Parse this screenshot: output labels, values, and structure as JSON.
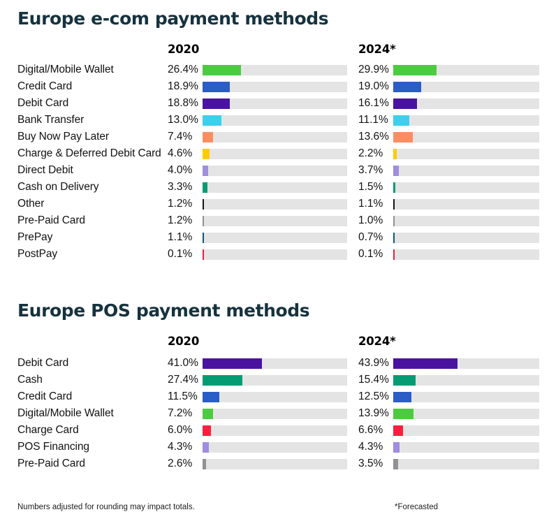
{
  "footer": {
    "left": "Numbers adjusted for rounding may impact totals.",
    "right": "*Forecasted"
  },
  "colors": {
    "track": "#E5E4E5",
    "title_text": "#16323F"
  },
  "sections": [
    {
      "title": "Europe e-com payment methods",
      "columns": [
        "2020",
        "2024*"
      ],
      "rows": [
        {
          "label": "Digital/Mobile Wallet",
          "v2020": "26.4%",
          "p2020": 26.4,
          "v2024": "29.9%",
          "p2024": 29.9,
          "color": "#4CCB40"
        },
        {
          "label": "Credit Card",
          "v2020": "18.9%",
          "p2020": 18.9,
          "v2024": "19.0%",
          "p2024": 19.0,
          "color": "#2A5DC5"
        },
        {
          "label": "Debit Card",
          "v2020": "18.8%",
          "p2020": 18.8,
          "v2024": "16.1%",
          "p2024": 16.1,
          "color": "#4A12A0"
        },
        {
          "label": "Bank Transfer",
          "v2020": "13.0%",
          "p2020": 13.0,
          "v2024": "11.1%",
          "p2024": 11.1,
          "color": "#3DCFEE"
        },
        {
          "label": "Buy Now Pay Later",
          "v2020": "7.4%",
          "p2020": 7.4,
          "v2024": "13.6%",
          "p2024": 13.6,
          "color": "#FC8D63"
        },
        {
          "label": "Charge & Deferred Debit Card",
          "v2020": "4.6%",
          "p2020": 4.6,
          "v2024": "2.2%",
          "p2024": 2.2,
          "color": "#FECB00"
        },
        {
          "label": "Direct Debit",
          "v2020": "4.0%",
          "p2020": 4.0,
          "v2024": "3.7%",
          "p2024": 3.7,
          "color": "#9F8DE0"
        },
        {
          "label": "Cash on Delivery",
          "v2020": "3.3%",
          "p2020": 3.3,
          "v2024": "1.5%",
          "p2024": 1.5,
          "color": "#059C74"
        },
        {
          "label": "Other",
          "v2020": "1.2%",
          "p2020": 1.2,
          "v2024": "1.1%",
          "p2024": 1.1,
          "color": "#141414"
        },
        {
          "label": "Pre-Paid Card",
          "v2020": "1.2%",
          "p2020": 1.2,
          "v2024": "1.0%",
          "p2024": 1.0,
          "color": "#909295"
        },
        {
          "label": "PrePay",
          "v2020": "1.1%",
          "p2020": 1.1,
          "v2024": "0.7%",
          "p2024": 0.7,
          "color": "#0E5878"
        },
        {
          "label": "PostPay",
          "v2020": "0.1%",
          "p2020": 0.1,
          "v2024": "0.1%",
          "p2024": 0.1,
          "color": "#EE1C43"
        }
      ]
    },
    {
      "title": "Europe POS payment methods",
      "columns": [
        "2020",
        "2024*"
      ],
      "rows": [
        {
          "label": "Debit Card",
          "v2020": "41.0%",
          "p2020": 41.0,
          "v2024": "43.9%",
          "p2024": 43.9,
          "color": "#4A12A0"
        },
        {
          "label": "Cash",
          "v2020": "27.4%",
          "p2020": 27.4,
          "v2024": "15.4%",
          "p2024": 15.4,
          "color": "#059C74"
        },
        {
          "label": "Credit Card",
          "v2020": "11.5%",
          "p2020": 11.5,
          "v2024": "12.5%",
          "p2024": 12.5,
          "color": "#2A5DC5"
        },
        {
          "label": "Digital/Mobile Wallet",
          "v2020": "7.2%",
          "p2020": 7.2,
          "v2024": "13.9%",
          "p2024": 13.9,
          "color": "#4CCB40"
        },
        {
          "label": "Charge Card",
          "v2020": "6.0%",
          "p2020": 6.0,
          "v2024": "6.6%",
          "p2024": 6.6,
          "color": "#FB1E3E"
        },
        {
          "label": "POS Financing",
          "v2020": "4.3%",
          "p2020": 4.3,
          "v2024": "4.3%",
          "p2024": 4.3,
          "color": "#9F8DE0"
        },
        {
          "label": "Pre-Paid Card",
          "v2020": "2.6%",
          "p2020": 2.6,
          "v2024": "3.5%",
          "p2024": 3.5,
          "color": "#909295"
        }
      ]
    }
  ],
  "chart_data": [
    {
      "type": "bar",
      "orientation": "horizontal",
      "title": "Europe e-com payment methods",
      "categories": [
        "Digital/Mobile Wallet",
        "Credit Card",
        "Debit Card",
        "Bank Transfer",
        "Buy Now Pay Later",
        "Charge & Deferred Debit Card",
        "Direct Debit",
        "Cash on Delivery",
        "Other",
        "Pre-Paid Card",
        "PrePay",
        "PostPay"
      ],
      "series": [
        {
          "name": "2020",
          "values": [
            26.4,
            18.9,
            18.8,
            13.0,
            7.4,
            4.6,
            4.0,
            3.3,
            1.2,
            1.2,
            1.1,
            0.1
          ]
        },
        {
          "name": "2024*",
          "values": [
            29.9,
            19.0,
            16.1,
            11.1,
            13.6,
            2.2,
            3.7,
            1.5,
            1.1,
            1.0,
            0.7,
            0.1
          ]
        }
      ],
      "unit": "%",
      "xlim": [
        0,
        100
      ],
      "grid": false,
      "legend_position": "column-headers",
      "annotations": [
        "Numbers adjusted for rounding may impact totals.",
        "*Forecasted"
      ]
    },
    {
      "type": "bar",
      "orientation": "horizontal",
      "title": "Europe POS payment methods",
      "categories": [
        "Debit Card",
        "Cash",
        "Credit Card",
        "Digital/Mobile Wallet",
        "Charge Card",
        "POS Financing",
        "Pre-Paid Card"
      ],
      "series": [
        {
          "name": "2020",
          "values": [
            41.0,
            27.4,
            11.5,
            7.2,
            6.0,
            4.3,
            2.6
          ]
        },
        {
          "name": "2024*",
          "values": [
            43.9,
            15.4,
            12.5,
            13.9,
            6.6,
            4.3,
            3.5
          ]
        }
      ],
      "unit": "%",
      "xlim": [
        0,
        100
      ],
      "grid": false,
      "legend_position": "column-headers",
      "annotations": [
        "*Forecasted"
      ]
    }
  ]
}
